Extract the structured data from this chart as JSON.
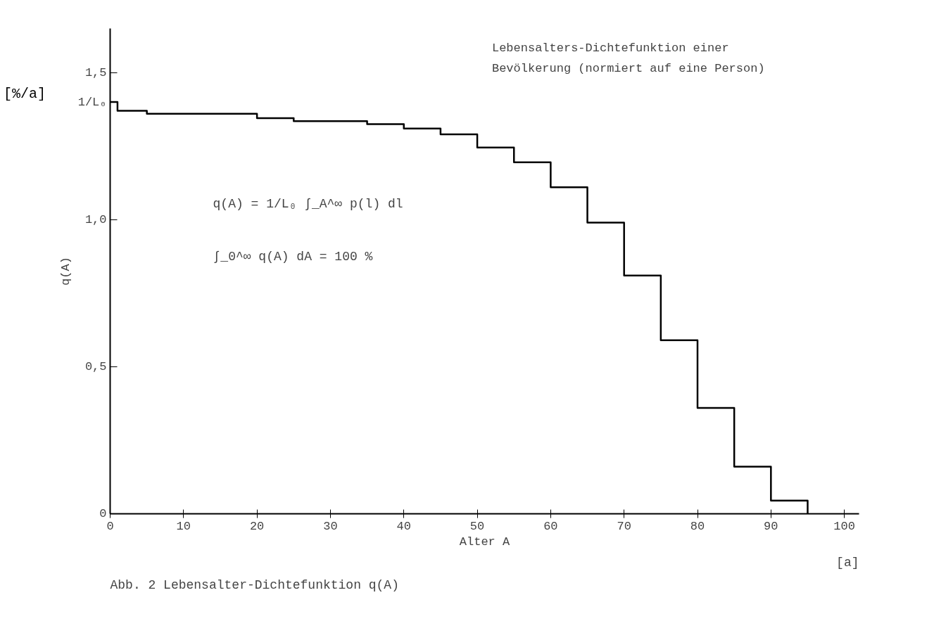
{
  "chart_data": {
    "type": "step",
    "xlabel": "Alter A",
    "ylabel": "q(A)",
    "x": [
      0,
      1,
      5,
      20,
      25,
      35,
      40,
      45,
      50,
      55,
      60,
      65,
      70,
      75,
      80,
      85,
      90,
      95
    ],
    "series": [
      {
        "color": "#000000",
        "values": [
          1.4,
          1.37,
          1.36,
          1.345,
          1.335,
          1.325,
          1.31,
          1.29,
          1.245,
          1.195,
          1.11,
          0.99,
          0.81,
          0.59,
          0.36,
          0.16,
          0.045,
          0
        ]
      }
    ],
    "xlim": [
      0,
      102
    ],
    "xticks": [
      0,
      10,
      20,
      30,
      40,
      50,
      60,
      70,
      80,
      90,
      100
    ],
    "ylim": [
      0,
      1.65
    ],
    "yticks": [
      0,
      {
        "value": 0.5,
        "label": "0,5"
      },
      {
        "value": 1.0,
        "label": "1,0"
      },
      {
        "value": 1.4,
        "label": "1/L₀"
      },
      {
        "value": 1.5,
        "label": "1,5"
      }
    ],
    "grid": false,
    "marker": "none",
    "line_style": "solid",
    "annotations": [
      "[%/a]",
      "[a]",
      "Lebensalters-Dichtefunktion einer",
      "Bevölkerung (normiert auf eine Person)",
      "q(A) = 1/L₀ ∫_A^∞ p(l) dl",
      "∫_0^∞ q(A) dA = 100 %",
      "Abb. 2 Lebensalter-Dichtefunktion q(A)"
    ]
  }
}
